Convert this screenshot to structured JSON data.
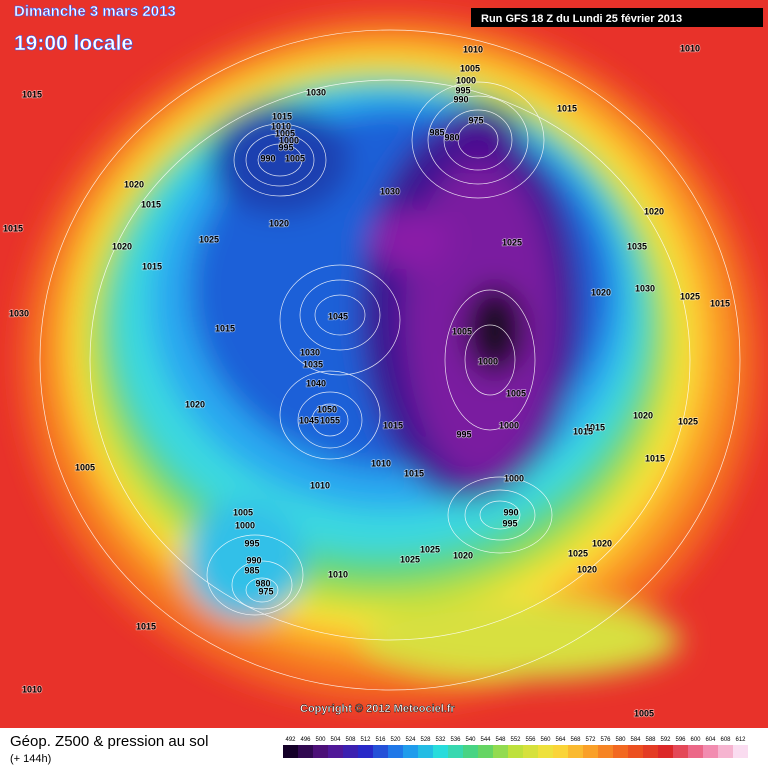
{
  "header": {
    "date": "Dimanche 3 mars 2013",
    "time": "19:00 locale",
    "run": "Run GFS 18 Z du Lundi 25 février 2013"
  },
  "footer": {
    "title": "Géop. Z500 & pression au sol",
    "lead": "(+ 144h)",
    "copyright": "Copyright © 2012 Meteociel.fr"
  },
  "scale": {
    "labels": [
      492,
      496,
      500,
      504,
      508,
      512,
      516,
      520,
      524,
      528,
      532,
      536,
      540,
      544,
      548,
      552,
      556,
      560,
      564,
      568,
      572,
      576,
      580,
      584,
      588,
      592,
      596,
      600,
      604,
      608,
      612
    ]
  },
  "isobar_labels": [
    1015,
    1030,
    1010,
    1010,
    1005,
    1000,
    995,
    990,
    975,
    985,
    980,
    1015,
    1015,
    1010,
    1005,
    1000,
    995,
    990,
    1005,
    1020,
    1015,
    1030,
    1020,
    1015,
    1020,
    1025,
    1025,
    1035,
    1020,
    1015,
    1030,
    1020,
    1025,
    1015,
    1030,
    1045,
    1015,
    1005,
    1030,
    1035,
    1000,
    1040,
    1005,
    1020,
    1050,
    1045,
    1055,
    1015,
    1020,
    1025,
    1015,
    1015,
    995,
    1000,
    1015,
    1010,
    1015,
    1005,
    1010,
    1000,
    990,
    995,
    1005,
    1000,
    995,
    1020,
    1025,
    1025,
    1020,
    1025,
    990,
    985,
    1020,
    1010,
    980,
    975,
    1015,
    1010,
    1005
  ]
}
